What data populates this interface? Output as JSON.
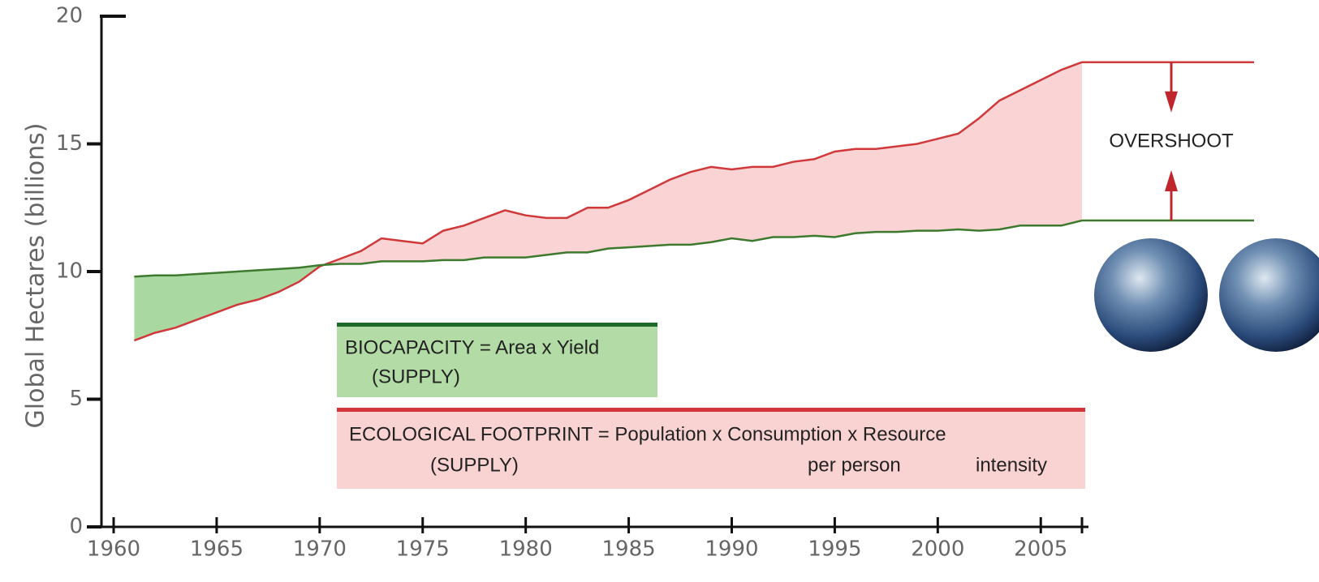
{
  "chart_data": {
    "type": "line",
    "y_label": "Global Hectares (billions)",
    "x": [
      1961,
      1962,
      1963,
      1964,
      1965,
      1966,
      1967,
      1968,
      1969,
      1970,
      1971,
      1972,
      1973,
      1974,
      1975,
      1976,
      1977,
      1978,
      1979,
      1980,
      1981,
      1982,
      1983,
      1984,
      1985,
      1986,
      1987,
      1988,
      1989,
      1990,
      1991,
      1992,
      1993,
      1994,
      1995,
      1996,
      1997,
      1998,
      1999,
      2000,
      2001,
      2002,
      2003,
      2004,
      2005,
      2006,
      2007
    ],
    "series": [
      {
        "color": "#d0383a",
        "fill": "#fad4d4",
        "values": [
          7.3,
          7.6,
          7.8,
          8.1,
          8.4,
          8.7,
          8.9,
          9.2,
          9.6,
          10.2,
          10.5,
          10.8,
          11.3,
          11.2,
          11.1,
          11.6,
          11.8,
          12.1,
          12.4,
          12.2,
          12.1,
          12.1,
          12.5,
          12.5,
          12.8,
          13.2,
          13.6,
          13.9,
          14.1,
          14.0,
          14.1,
          14.1,
          14.3,
          14.4,
          14.7,
          14.8,
          14.8,
          14.9,
          15.0,
          15.2,
          15.4,
          16.0,
          16.7,
          17.1,
          17.5,
          17.9,
          18.2
        ]
      },
      {
        "color": "#3d7a2e",
        "fill": "#a9d9a0",
        "values": [
          9.8,
          9.85,
          9.85,
          9.9,
          9.95,
          10.0,
          10.05,
          10.1,
          10.15,
          10.25,
          10.3,
          10.3,
          10.4,
          10.4,
          10.4,
          10.45,
          10.45,
          10.55,
          10.55,
          10.55,
          10.65,
          10.75,
          10.75,
          10.9,
          10.95,
          11.0,
          11.05,
          11.05,
          11.15,
          11.3,
          11.2,
          11.35,
          11.35,
          11.4,
          11.35,
          11.5,
          11.55,
          11.55,
          11.6,
          11.6,
          11.65,
          11.6,
          11.65,
          11.8,
          11.8,
          11.8,
          12.0
        ]
      }
    ],
    "xlim": [
      1960,
      2007
    ],
    "xticks": [
      1960,
      1965,
      1970,
      1975,
      1980,
      1985,
      1990,
      1995,
      2000,
      2005
    ],
    "ylim": [
      0,
      20
    ],
    "yticks": [
      0,
      5,
      10,
      15,
      20
    ],
    "annotations": {
      "biocapacity": "BIOCAPACITY = Area  x  Yield",
      "biocapacity_sub": "(SUPPLY)",
      "footprint": "ECOLOGICAL FOOTPRINT = Population  x  Consumption  x  Resource",
      "footprint_sub": "(SUPPLY)",
      "footprint_sub2": "per person",
      "footprint_sub3": "intensity",
      "overshoot": "OVERSHOOT"
    }
  }
}
